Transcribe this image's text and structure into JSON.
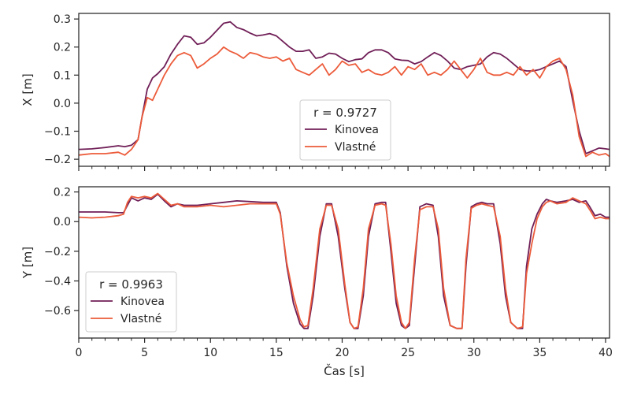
{
  "chart_data": [
    {
      "type": "line",
      "xlabel": "",
      "ylabel": "X [m]",
      "xlim": [
        0,
        40.3
      ],
      "ylim": [
        -0.225,
        0.32
      ],
      "yticks": [
        -0.2,
        -0.1,
        0.0,
        0.1,
        0.2,
        0.3
      ],
      "ytick_labels": [
        "−0.2",
        "−0.1",
        "0.0",
        "0.1",
        "0.2",
        "0.3"
      ],
      "legend_title": "r = 0.9727",
      "legend_position": "bottom-center",
      "series": [
        {
          "name": "Kinovea",
          "color": "#701f57",
          "x": [
            0,
            1,
            2,
            3,
            3.5,
            4,
            4.5,
            4.8,
            5.2,
            5.6,
            6,
            6.5,
            7,
            7.5,
            8,
            8.5,
            9,
            9.5,
            10,
            10.5,
            11,
            11.5,
            12,
            12.5,
            13,
            13.5,
            14,
            14.5,
            15,
            15.5,
            16,
            16.5,
            17,
            17.5,
            18,
            18.5,
            19,
            19.5,
            20,
            20.5,
            21,
            21.5,
            22,
            22.5,
            23,
            23.5,
            24,
            24.5,
            25,
            25.5,
            26,
            26.5,
            27,
            27.5,
            28,
            28.5,
            29,
            29.5,
            30,
            30.5,
            31,
            31.5,
            32,
            32.5,
            33,
            33.5,
            34,
            34.5,
            35,
            35.5,
            36,
            36.5,
            37,
            37.5,
            38,
            38.5,
            39,
            39.5,
            40,
            40.3
          ],
          "y": [
            -0.165,
            -0.163,
            -0.158,
            -0.152,
            -0.155,
            -0.15,
            -0.13,
            -0.05,
            0.05,
            0.09,
            0.105,
            0.13,
            0.175,
            0.21,
            0.24,
            0.235,
            0.21,
            0.215,
            0.235,
            0.26,
            0.285,
            0.29,
            0.27,
            0.262,
            0.25,
            0.24,
            0.243,
            0.248,
            0.24,
            0.22,
            0.2,
            0.185,
            0.185,
            0.19,
            0.16,
            0.165,
            0.178,
            0.175,
            0.16,
            0.148,
            0.155,
            0.158,
            0.18,
            0.19,
            0.19,
            0.18,
            0.158,
            0.153,
            0.152,
            0.14,
            0.148,
            0.165,
            0.18,
            0.17,
            0.15,
            0.125,
            0.12,
            0.13,
            0.135,
            0.14,
            0.165,
            0.18,
            0.175,
            0.16,
            0.14,
            0.12,
            0.115,
            0.115,
            0.12,
            0.13,
            0.14,
            0.15,
            0.13,
            0.01,
            -0.1,
            -0.18,
            -0.17,
            -0.16,
            -0.163,
            -0.165
          ]
        },
        {
          "name": "Vlastné",
          "color": "#ec5b3a",
          "x": [
            0,
            1,
            2,
            3,
            3.5,
            4,
            4.5,
            4.8,
            5.2,
            5.6,
            6,
            6.5,
            7,
            7.5,
            8,
            8.5,
            9,
            9.5,
            10,
            10.5,
            11,
            11.5,
            12,
            12.5,
            13,
            13.5,
            14,
            14.5,
            15,
            15.5,
            16,
            16.5,
            17,
            17.5,
            18,
            18.5,
            19,
            19.5,
            20,
            20.5,
            21,
            21.5,
            22,
            22.5,
            23,
            23.5,
            24,
            24.5,
            25,
            25.5,
            26,
            26.5,
            27,
            27.5,
            28,
            28.5,
            29,
            29.5,
            30,
            30.5,
            31,
            31.5,
            32,
            32.5,
            33,
            33.5,
            34,
            34.5,
            35,
            35.5,
            36,
            36.5,
            37,
            37.5,
            38,
            38.5,
            39,
            39.5,
            40,
            40.3
          ],
          "y": [
            -0.185,
            -0.18,
            -0.18,
            -0.175,
            -0.185,
            -0.165,
            -0.13,
            -0.05,
            0.02,
            0.01,
            0.05,
            0.1,
            0.14,
            0.17,
            0.18,
            0.17,
            0.125,
            0.14,
            0.16,
            0.175,
            0.2,
            0.185,
            0.175,
            0.16,
            0.18,
            0.175,
            0.165,
            0.16,
            0.165,
            0.15,
            0.16,
            0.12,
            0.11,
            0.1,
            0.12,
            0.14,
            0.1,
            0.12,
            0.15,
            0.135,
            0.14,
            0.11,
            0.12,
            0.105,
            0.1,
            0.11,
            0.13,
            0.1,
            0.13,
            0.12,
            0.14,
            0.1,
            0.11,
            0.1,
            0.12,
            0.15,
            0.12,
            0.09,
            0.12,
            0.16,
            0.11,
            0.1,
            0.1,
            0.11,
            0.1,
            0.13,
            0.1,
            0.12,
            0.09,
            0.13,
            0.15,
            0.16,
            0.12,
            0.03,
            -0.12,
            -0.19,
            -0.175,
            -0.185,
            -0.18,
            -0.19
          ]
        }
      ]
    },
    {
      "type": "line",
      "xlabel": "Čas [s]",
      "ylabel": "Y [m]",
      "xlim": [
        0,
        40.3
      ],
      "ylim": [
        -0.785,
        0.235
      ],
      "xticks": [
        0,
        5,
        10,
        15,
        20,
        25,
        30,
        35,
        40
      ],
      "xtick_labels": [
        "0",
        "5",
        "10",
        "15",
        "20",
        "25",
        "30",
        "35",
        "40"
      ],
      "yticks": [
        -0.6,
        -0.4,
        -0.2,
        0.0,
        0.2
      ],
      "ytick_labels": [
        "−0.6",
        "−0.4",
        "−0.2",
        "0.0",
        "0.2"
      ],
      "legend_title": "r = 0.9963",
      "legend_position": "bottom-left",
      "series": [
        {
          "name": "Kinovea",
          "color": "#701f57",
          "x": [
            0,
            1,
            2,
            3,
            3.4,
            3.7,
            4,
            4.5,
            5,
            5.5,
            6,
            6.5,
            7,
            7.5,
            8,
            9,
            10,
            11,
            12,
            13,
            14,
            15,
            15.3,
            15.8,
            16.3,
            16.8,
            17.1,
            17.4,
            17.8,
            18.3,
            18.8,
            19.2,
            19.7,
            20.2,
            20.6,
            20.9,
            21.2,
            21.6,
            22,
            22.5,
            23,
            23.3,
            23.7,
            24.1,
            24.5,
            24.8,
            25.1,
            25.5,
            25.9,
            26.4,
            26.9,
            27.3,
            27.7,
            28.2,
            28.7,
            29.1,
            29.4,
            29.8,
            30.2,
            30.6,
            31,
            31.5,
            32,
            32.4,
            32.8,
            33.3,
            33.7,
            34,
            34.4,
            34.8,
            35.2,
            35.5,
            35.8,
            36.3,
            37,
            37.5,
            38,
            38.5,
            38.8,
            39.2,
            39.6,
            40,
            40.3
          ],
          "y": [
            0.065,
            0.065,
            0.065,
            0.06,
            0.06,
            0.11,
            0.16,
            0.14,
            0.16,
            0.15,
            0.185,
            0.14,
            0.1,
            0.12,
            0.11,
            0.11,
            0.12,
            0.13,
            0.14,
            0.135,
            0.13,
            0.13,
            0.06,
            -0.3,
            -0.55,
            -0.69,
            -0.72,
            -0.72,
            -0.5,
            -0.1,
            0.12,
            0.12,
            -0.1,
            -0.45,
            -0.68,
            -0.72,
            -0.72,
            -0.5,
            -0.1,
            0.12,
            0.13,
            0.13,
            -0.2,
            -0.55,
            -0.7,
            -0.72,
            -0.7,
            -0.3,
            0.1,
            0.12,
            0.11,
            -0.1,
            -0.5,
            -0.7,
            -0.72,
            -0.72,
            -0.3,
            0.1,
            0.12,
            0.13,
            0.12,
            0.12,
            -0.15,
            -0.5,
            -0.68,
            -0.72,
            -0.72,
            -0.3,
            -0.05,
            0.05,
            0.12,
            0.15,
            0.14,
            0.13,
            0.14,
            0.15,
            0.13,
            0.14,
            0.1,
            0.04,
            0.05,
            0.03,
            0.03
          ]
        },
        {
          "name": "Vlastné",
          "color": "#ec5b3a",
          "x": [
            0,
            1,
            2,
            3,
            3.4,
            3.7,
            4,
            4.5,
            5,
            5.5,
            6,
            6.5,
            7,
            7.5,
            8,
            9,
            10,
            11,
            12,
            13,
            14,
            15,
            15.3,
            15.8,
            16.3,
            16.8,
            17.1,
            17.4,
            17.8,
            18.3,
            18.8,
            19.2,
            19.7,
            20.2,
            20.6,
            20.9,
            21.2,
            21.6,
            22,
            22.5,
            23,
            23.3,
            23.7,
            24.1,
            24.5,
            24.8,
            25.1,
            25.5,
            25.9,
            26.4,
            26.9,
            27.3,
            27.7,
            28.2,
            28.7,
            29.1,
            29.4,
            29.8,
            30.2,
            30.6,
            31,
            31.5,
            32,
            32.4,
            32.8,
            33.3,
            33.7,
            34,
            34.4,
            34.8,
            35.2,
            35.5,
            35.8,
            36.3,
            37,
            37.5,
            38,
            38.5,
            38.8,
            39.2,
            39.6,
            40,
            40.3
          ],
          "y": [
            0.03,
            0.025,
            0.03,
            0.04,
            0.05,
            0.13,
            0.17,
            0.16,
            0.17,
            0.16,
            0.19,
            0.15,
            0.11,
            0.12,
            0.1,
            0.1,
            0.11,
            0.1,
            0.11,
            0.12,
            0.12,
            0.12,
            0.05,
            -0.28,
            -0.5,
            -0.66,
            -0.71,
            -0.7,
            -0.45,
            -0.05,
            0.11,
            0.11,
            -0.05,
            -0.42,
            -0.68,
            -0.72,
            -0.71,
            -0.45,
            -0.05,
            0.11,
            0.12,
            0.11,
            -0.15,
            -0.5,
            -0.68,
            -0.72,
            -0.68,
            -0.25,
            0.08,
            0.1,
            0.1,
            -0.05,
            -0.45,
            -0.7,
            -0.72,
            -0.72,
            -0.25,
            0.09,
            0.11,
            0.12,
            0.11,
            0.1,
            -0.1,
            -0.45,
            -0.68,
            -0.72,
            -0.71,
            -0.35,
            -0.15,
            0.02,
            0.1,
            0.13,
            0.14,
            0.12,
            0.13,
            0.16,
            0.14,
            0.12,
            0.08,
            0.02,
            0.03,
            0.02,
            0.02
          ]
        }
      ]
    }
  ]
}
